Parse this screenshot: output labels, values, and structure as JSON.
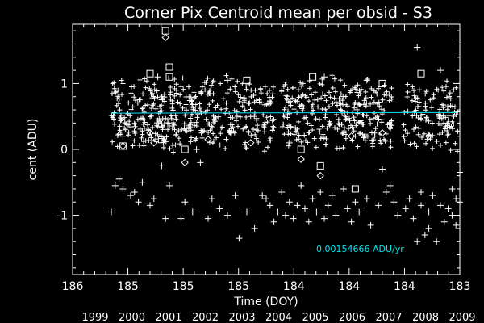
{
  "chart_data": {
    "type": "scatter",
    "title": "Corner Pix Centroid mean per obsid - S3",
    "xlabel": "Time (DOY)",
    "ylabel": "cent (ADU)",
    "x_tick_labels": [
      "186",
      "185",
      "185",
      "185",
      "184",
      "184",
      "184",
      "183"
    ],
    "y_tick_labels": [
      "-1",
      "0",
      "1"
    ],
    "y_ticks": [
      -1,
      0,
      1
    ],
    "xlim": [
      1999.0,
      2009.0
    ],
    "ylim": [
      -1.9,
      1.9
    ],
    "year_labels": [
      "1999",
      "2000",
      "2001",
      "2002",
      "2003",
      "2004",
      "2005",
      "2006",
      "2007",
      "2008",
      "2009"
    ],
    "fit": {
      "label": "0.00154666 ADU/yr",
      "x": [
        2000.0,
        2008.9
      ],
      "y": [
        0.55,
        0.56
      ],
      "color": "#00e5ee"
    },
    "gaps": [
      [
        2004.2,
        2004.4
      ],
      [
        2007.25,
        2007.55
      ]
    ],
    "series": [
      {
        "marker": "plus",
        "points": [
          [
            2000.0,
            -0.95
          ],
          [
            2000.1,
            -0.55
          ],
          [
            2000.2,
            -0.45
          ],
          [
            2000.3,
            -0.6
          ],
          [
            2000.5,
            -0.7
          ],
          [
            2000.6,
            -0.65
          ],
          [
            2000.7,
            -0.8
          ],
          [
            2000.8,
            -0.5
          ],
          [
            2001.0,
            -0.85
          ],
          [
            2001.1,
            -0.75
          ],
          [
            2001.3,
            -0.25
          ],
          [
            2001.4,
            -1.05
          ],
          [
            2001.5,
            -0.55
          ],
          [
            2001.8,
            -1.05
          ],
          [
            2001.9,
            -0.8
          ],
          [
            2002.1,
            -0.95
          ],
          [
            2002.3,
            -0.2
          ],
          [
            2002.5,
            -1.05
          ],
          [
            2002.6,
            -0.75
          ],
          [
            2002.8,
            -0.9
          ],
          [
            2003.0,
            -1.0
          ],
          [
            2003.2,
            -0.7
          ],
          [
            2003.3,
            -1.35
          ],
          [
            2003.5,
            -0.95
          ],
          [
            2003.7,
            -1.2
          ],
          [
            2003.9,
            -0.7
          ],
          [
            2004.0,
            -0.75
          ],
          [
            2004.1,
            -0.85
          ],
          [
            2004.2,
            -1.1
          ],
          [
            2004.3,
            -0.95
          ],
          [
            2004.4,
            -0.65
          ],
          [
            2004.5,
            -1.0
          ],
          [
            2004.6,
            -0.8
          ],
          [
            2004.7,
            -1.05
          ],
          [
            2004.8,
            -0.85
          ],
          [
            2004.9,
            -0.55
          ],
          [
            2005.0,
            -0.9
          ],
          [
            2005.1,
            -1.1
          ],
          [
            2005.2,
            -0.75
          ],
          [
            2005.3,
            -0.95
          ],
          [
            2005.4,
            -0.65
          ],
          [
            2005.5,
            -1.05
          ],
          [
            2005.6,
            -0.85
          ],
          [
            2005.7,
            -0.7
          ],
          [
            2005.8,
            -1.0
          ],
          [
            2006.0,
            -0.6
          ],
          [
            2006.1,
            -0.9
          ],
          [
            2006.2,
            -1.1
          ],
          [
            2006.3,
            -0.8
          ],
          [
            2006.4,
            -0.95
          ],
          [
            2006.6,
            -0.75
          ],
          [
            2006.7,
            -1.15
          ],
          [
            2006.9,
            -0.85
          ],
          [
            2007.0,
            -0.3
          ],
          [
            2007.1,
            -0.65
          ],
          [
            2007.2,
            -0.55
          ],
          [
            2007.3,
            -0.8
          ],
          [
            2007.4,
            -1.0
          ],
          [
            2007.6,
            -0.9
          ],
          [
            2007.7,
            -0.75
          ],
          [
            2007.8,
            -1.05
          ],
          [
            2007.9,
            -1.4
          ],
          [
            2008.0,
            -0.85
          ],
          [
            2008.0,
            -0.65
          ],
          [
            2008.1,
            -1.3
          ],
          [
            2008.2,
            -0.95
          ],
          [
            2008.2,
            -1.2
          ],
          [
            2008.3,
            -0.7
          ],
          [
            2008.4,
            -1.4
          ],
          [
            2008.5,
            -0.85
          ],
          [
            2008.6,
            -1.1
          ],
          [
            2008.7,
            -0.9
          ],
          [
            2008.8,
            -0.6
          ],
          [
            2008.8,
            -1.0
          ],
          [
            2008.9,
            -0.75
          ],
          [
            2008.9,
            -1.15
          ],
          [
            2009.0,
            -0.35
          ],
          [
            2009.0,
            -0.8
          ],
          [
            2007.9,
            1.55
          ],
          [
            2001.2,
            1.1
          ],
          [
            2006.6,
            1.05
          ],
          [
            2000.3,
            0.2
          ],
          [
            2008.5,
            1.2
          ],
          [
            2003.0,
            1.05
          ],
          [
            2005.5,
            1.1
          ],
          [
            2004.6,
            0.1
          ],
          [
            2002.2,
            0.0
          ]
        ]
      },
      {
        "marker": "square",
        "points": [
          [
            2001.4,
            1.8
          ],
          [
            2001.5,
            1.25
          ],
          [
            2001.5,
            1.1
          ],
          [
            2001.3,
            0.15
          ],
          [
            2001.9,
            0.0
          ],
          [
            2004.9,
            0.0
          ],
          [
            2005.4,
            -0.25
          ],
          [
            2006.3,
            -0.6
          ],
          [
            2003.5,
            1.05
          ],
          [
            2005.2,
            1.1
          ],
          [
            2007.0,
            1.0
          ],
          [
            2008.0,
            1.15
          ],
          [
            2001.0,
            1.15
          ],
          [
            2000.3,
            0.05
          ]
        ]
      },
      {
        "marker": "diamond",
        "points": [
          [
            2001.4,
            1.7
          ],
          [
            2000.3,
            0.05
          ],
          [
            2001.1,
            0.1
          ],
          [
            2001.9,
            -0.2
          ],
          [
            2004.9,
            -0.15
          ],
          [
            2005.4,
            -0.4
          ],
          [
            2001.0,
            0.25
          ],
          [
            2007.0,
            0.25
          ],
          [
            2003.6,
            0.1
          ],
          [
            2006.2,
            0.2
          ],
          [
            2008.2,
            0.2
          ],
          [
            2002.5,
            0.15
          ]
        ]
      }
    ]
  }
}
